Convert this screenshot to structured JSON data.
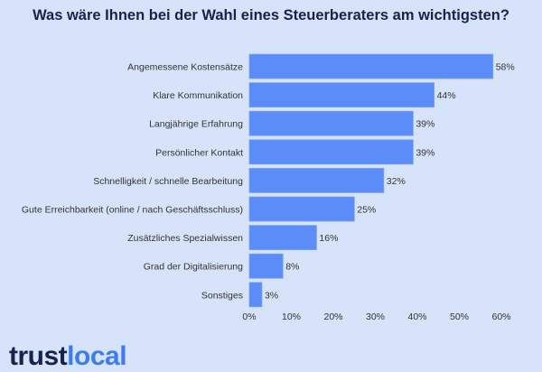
{
  "chart_data": {
    "type": "bar",
    "orientation": "horizontal",
    "title": "Was wäre Ihnen bei der Wahl eines Steuerberaters am wichtigsten?",
    "categories": [
      "Angemessene Kostensätze",
      "Klare Kommunikation",
      "Langjährige Erfahrung",
      "Persönlicher Kontakt",
      "Schnelligkeit / schnelle Bearbeitung",
      "Gute Erreichbarkeit (online / nach Geschäftsschluss)",
      "Zusätzliches Spezialwissen",
      "Grad der Digitalisierung",
      "Sonstiges"
    ],
    "values": [
      58,
      44,
      39,
      39,
      32,
      25,
      16,
      8,
      3
    ],
    "value_labels": [
      "58%",
      "44%",
      "39%",
      "39%",
      "32%",
      "25%",
      "16%",
      "8%",
      "3%"
    ],
    "xlim": [
      0,
      60
    ],
    "xticks": [
      0,
      10,
      20,
      30,
      40,
      50,
      60
    ],
    "xtick_labels": [
      "0%",
      "10%",
      "20%",
      "30%",
      "40%",
      "50%",
      "60%"
    ],
    "grid": false,
    "bar_color": "#5b8cf7"
  },
  "logo": {
    "part1": "trust",
    "part2": "local"
  }
}
